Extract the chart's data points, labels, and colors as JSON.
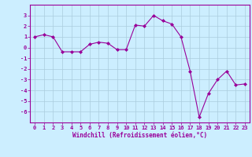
{
  "x": [
    0,
    1,
    2,
    3,
    4,
    5,
    6,
    7,
    8,
    9,
    10,
    11,
    12,
    13,
    14,
    15,
    16,
    17,
    18,
    19,
    20,
    21,
    22,
    23
  ],
  "y": [
    1.0,
    1.2,
    1.0,
    -0.4,
    -0.4,
    -0.4,
    0.3,
    0.5,
    0.4,
    -0.2,
    -0.2,
    2.1,
    2.0,
    3.0,
    2.5,
    2.2,
    1.0,
    -2.2,
    -6.5,
    -4.3,
    -3.0,
    -2.2,
    -3.5,
    -3.4
  ],
  "line_color": "#990099",
  "marker": "D",
  "marker_size": 2.0,
  "bg_color": "#cceeff",
  "grid_color": "#aaccdd",
  "xlabel": "Windchill (Refroidissement éolien,°C)",
  "xlabel_color": "#990099",
  "tick_color": "#990099",
  "spine_color": "#990099",
  "ylim": [
    -7,
    4
  ],
  "xlim": [
    -0.5,
    23.5
  ],
  "yticks": [
    -6,
    -5,
    -4,
    -3,
    -2,
    -1,
    0,
    1,
    2,
    3
  ],
  "xticks": [
    0,
    1,
    2,
    3,
    4,
    5,
    6,
    7,
    8,
    9,
    10,
    11,
    12,
    13,
    14,
    15,
    16,
    17,
    18,
    19,
    20,
    21,
    22,
    23
  ]
}
